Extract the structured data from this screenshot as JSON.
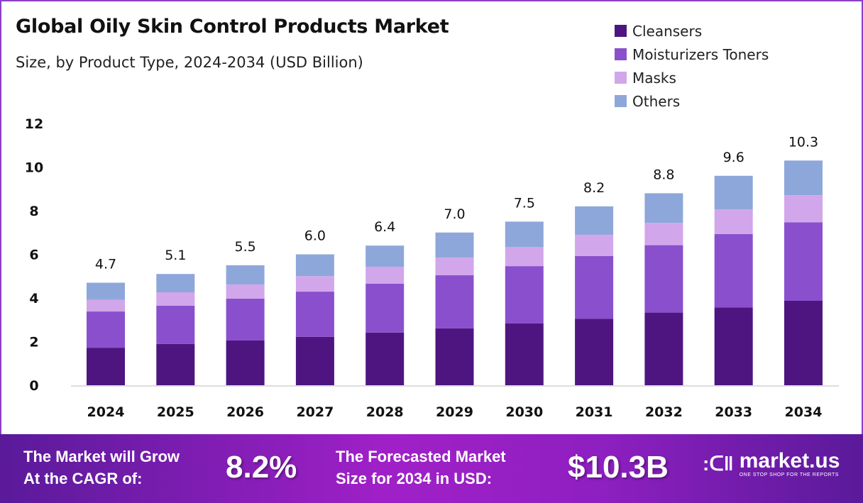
{
  "chart_data": {
    "type": "bar",
    "stacked": true,
    "title": "Global Oily Skin Control Products Market",
    "subtitle": "Size, by Product Type, 2024-2034 (USD Billion)",
    "categories": [
      "2024",
      "2025",
      "2026",
      "2027",
      "2028",
      "2029",
      "2030",
      "2031",
      "2032",
      "2033",
      "2034"
    ],
    "series": [
      {
        "name": "Cleansers",
        "color": "#4e1581",
        "values": [
          1.72,
          1.89,
          2.05,
          2.22,
          2.41,
          2.61,
          2.83,
          3.05,
          3.33,
          3.57,
          3.87
        ]
      },
      {
        "name": "Moisturizers Toners",
        "color": "#8a4fcd",
        "values": [
          1.66,
          1.76,
          1.92,
          2.07,
          2.24,
          2.43,
          2.63,
          2.87,
          3.09,
          3.36,
          3.6
        ]
      },
      {
        "name": "Masks",
        "color": "#d2a6ea",
        "values": [
          0.54,
          0.61,
          0.65,
          0.71,
          0.78,
          0.81,
          0.87,
          0.97,
          1.02,
          1.13,
          1.24
        ]
      },
      {
        "name": "Others",
        "color": "#8ea7da",
        "values": [
          0.78,
          0.84,
          0.88,
          1.0,
          0.97,
          1.15,
          1.17,
          1.31,
          1.36,
          1.54,
          1.59
        ]
      }
    ],
    "totals": [
      "4.7",
      "5.1",
      "5.5",
      "6.0",
      "6.4",
      "7.0",
      "7.5",
      "8.2",
      "8.8",
      "9.6",
      "10.3"
    ],
    "yticks": [
      "0",
      "2",
      "4",
      "6",
      "8",
      "10",
      "12"
    ],
    "ylim": [
      0,
      12
    ],
    "xlabel": "",
    "ylabel": "",
    "grid": false,
    "legend_position": "top-right"
  },
  "footer": {
    "cagr_label_line1": "The Market will Grow",
    "cagr_label_line2": "At the CAGR of:",
    "cagr_value": "8.2%",
    "forecast_label_line1": "The Forecasted Market",
    "forecast_label_line2": "Size for 2034 in USD:",
    "forecast_value": "$10.3B",
    "brand_name": "market.us",
    "brand_tagline": "ONE STOP SHOP FOR THE REPORTS"
  }
}
